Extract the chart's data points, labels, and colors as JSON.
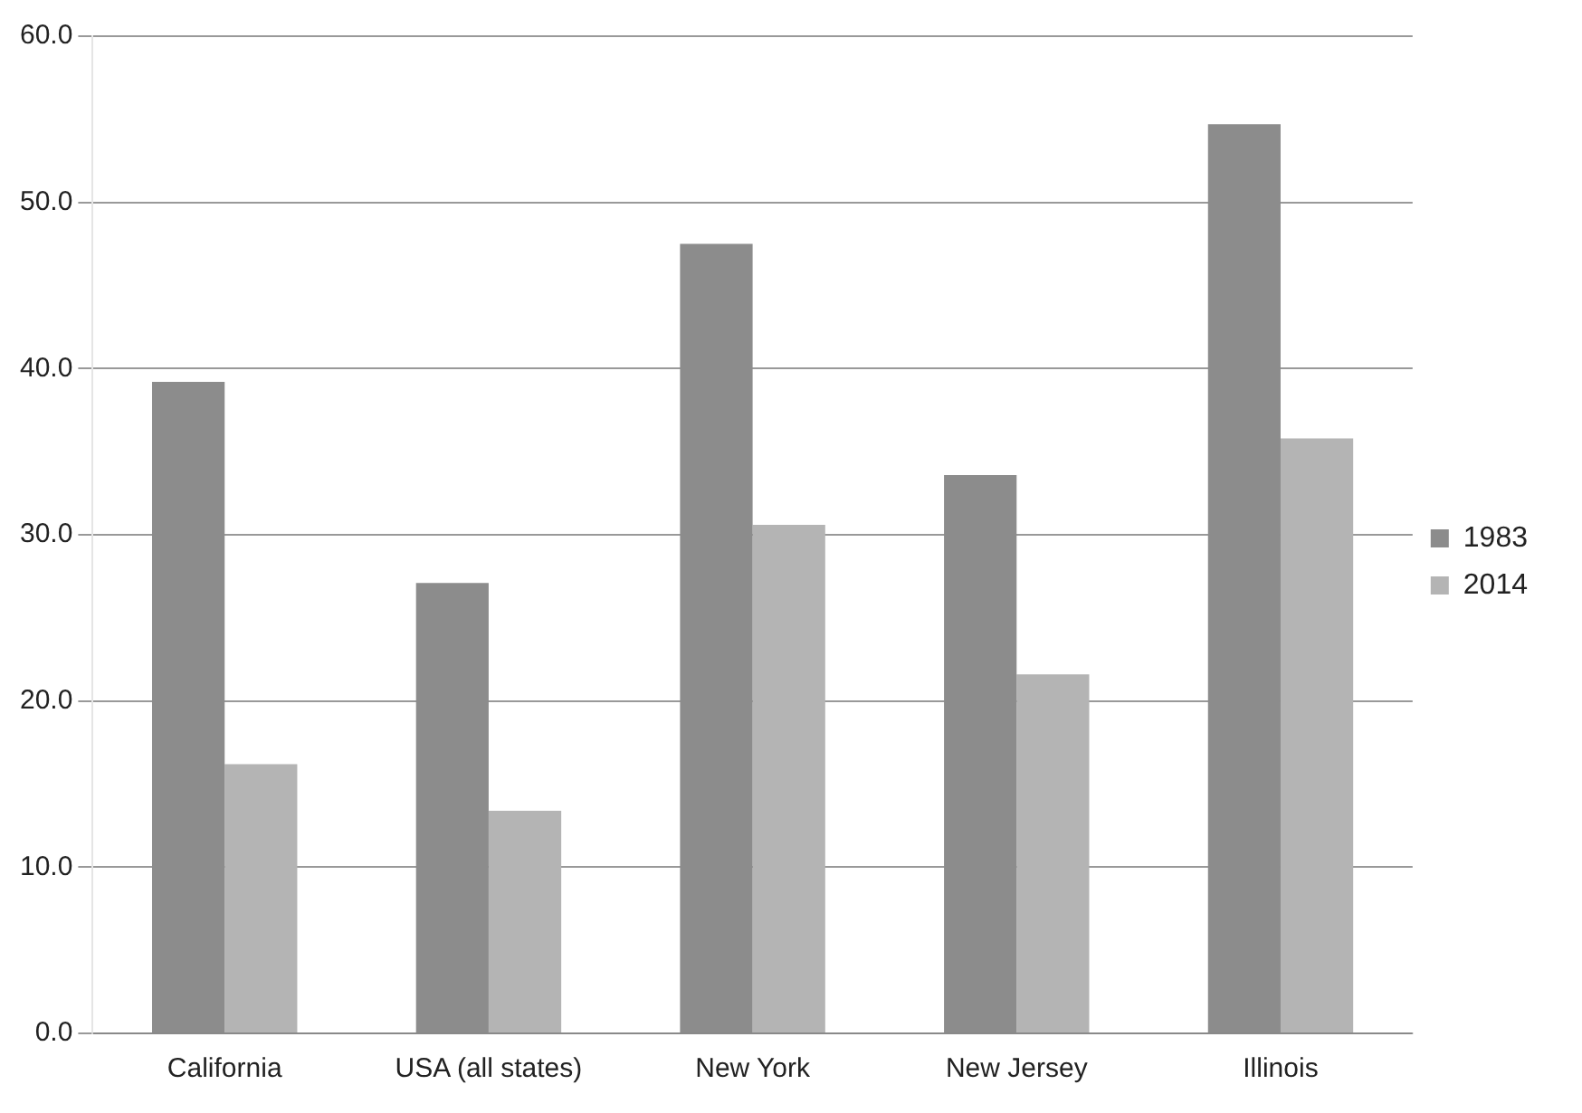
{
  "chart_data": {
    "type": "bar",
    "categories": [
      "California",
      "USA (all states)",
      "New York",
      "New Jersey",
      "Illinois"
    ],
    "series": [
      {
        "name": "1983",
        "color": "#8c8c8c",
        "values": [
          39.2,
          27.1,
          47.5,
          33.6,
          54.7
        ]
      },
      {
        "name": "2014",
        "color": "#b4b4b4",
        "values": [
          16.2,
          13.4,
          30.6,
          21.6,
          35.8
        ]
      }
    ],
    "ylim": [
      0,
      60
    ],
    "yticks": [
      {
        "value": 0,
        "label": "0.0"
      },
      {
        "value": 10,
        "label": "10.0"
      },
      {
        "value": 20,
        "label": "20.0"
      },
      {
        "value": 30,
        "label": "30.0"
      },
      {
        "value": 40,
        "label": "40.0"
      },
      {
        "value": 50,
        "label": "50.0"
      },
      {
        "value": 60,
        "label": "60.0"
      }
    ],
    "grid": "y",
    "legend": "right"
  }
}
